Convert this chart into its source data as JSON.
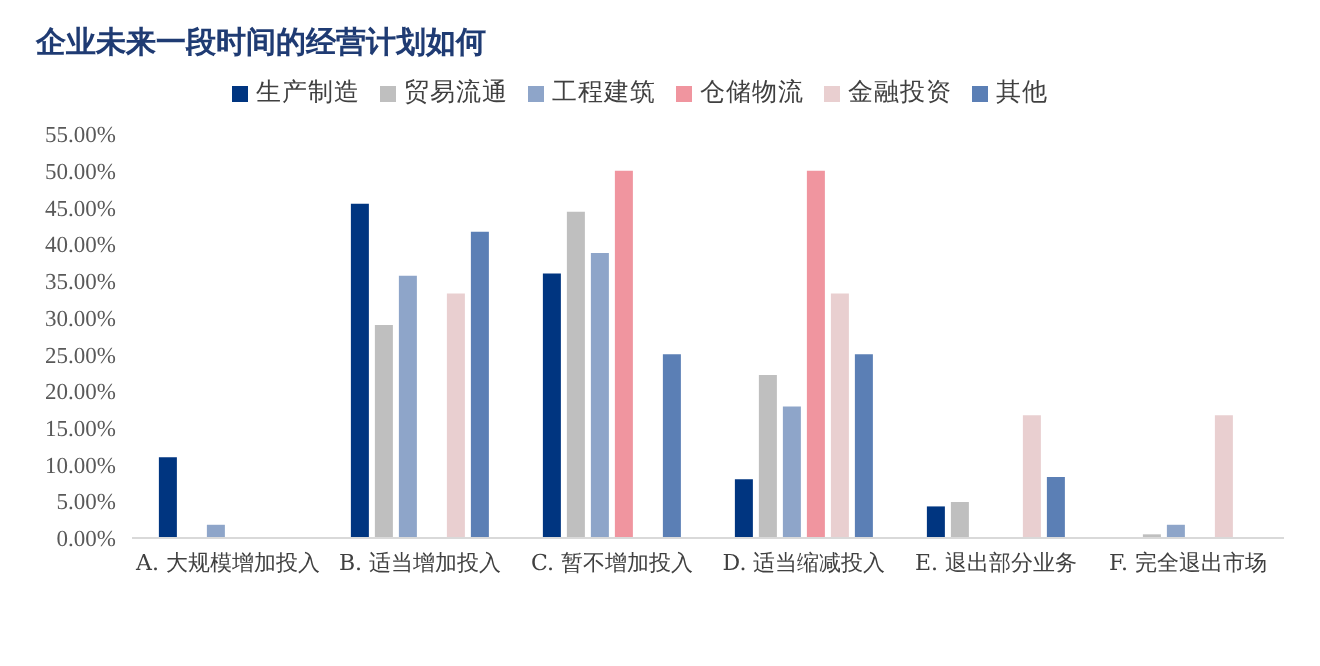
{
  "chart_data": {
    "type": "bar",
    "title": "企业未来一段时间的经营计划如何",
    "categories": [
      "A. 大规模增加投入",
      "B. 适当增加投入",
      "C. 暂不增加投入",
      "D. 适当缩减投入",
      "E. 退出部分业务",
      "F. 完全退出市场"
    ],
    "series": [
      {
        "name": "生产制造",
        "color": "#003580",
        "values": [
          11,
          45.5,
          36,
          8,
          4.3,
          0
        ]
      },
      {
        "name": "贸易流通",
        "color": "#bfbfbf",
        "values": [
          0,
          29,
          44.4,
          22.2,
          4.9,
          0.5
        ]
      },
      {
        "name": "工程建筑",
        "color": "#8ea5c9",
        "values": [
          1.8,
          35.7,
          38.8,
          17.9,
          0,
          1.8
        ]
      },
      {
        "name": "仓储物流",
        "color": "#f0959f",
        "values": [
          0,
          0,
          50,
          50,
          0,
          0
        ]
      },
      {
        "name": "金融投资",
        "color": "#e9cfd0",
        "values": [
          0,
          33.3,
          0,
          33.3,
          16.7,
          16.7
        ]
      },
      {
        "name": "其他",
        "color": "#5b7fb5",
        "values": [
          0,
          41.7,
          25,
          25,
          8.3,
          0
        ]
      }
    ],
    "ylim": [
      0,
      55
    ],
    "yticks": [
      {
        "value": 0,
        "label": "0.00%"
      },
      {
        "value": 5,
        "label": "5.00%"
      },
      {
        "value": 10,
        "label": "10.00%"
      },
      {
        "value": 15,
        "label": "15.00%"
      },
      {
        "value": 20,
        "label": "20.00%"
      },
      {
        "value": 25,
        "label": "25.00%"
      },
      {
        "value": 30,
        "label": "30.00%"
      },
      {
        "value": 35,
        "label": "35.00%"
      },
      {
        "value": 40,
        "label": "40.00%"
      },
      {
        "value": 45,
        "label": "45.00%"
      },
      {
        "value": 50,
        "label": "50.00%"
      },
      {
        "value": 55,
        "label": "55.00%"
      }
    ],
    "legend": "top",
    "grid": false
  }
}
